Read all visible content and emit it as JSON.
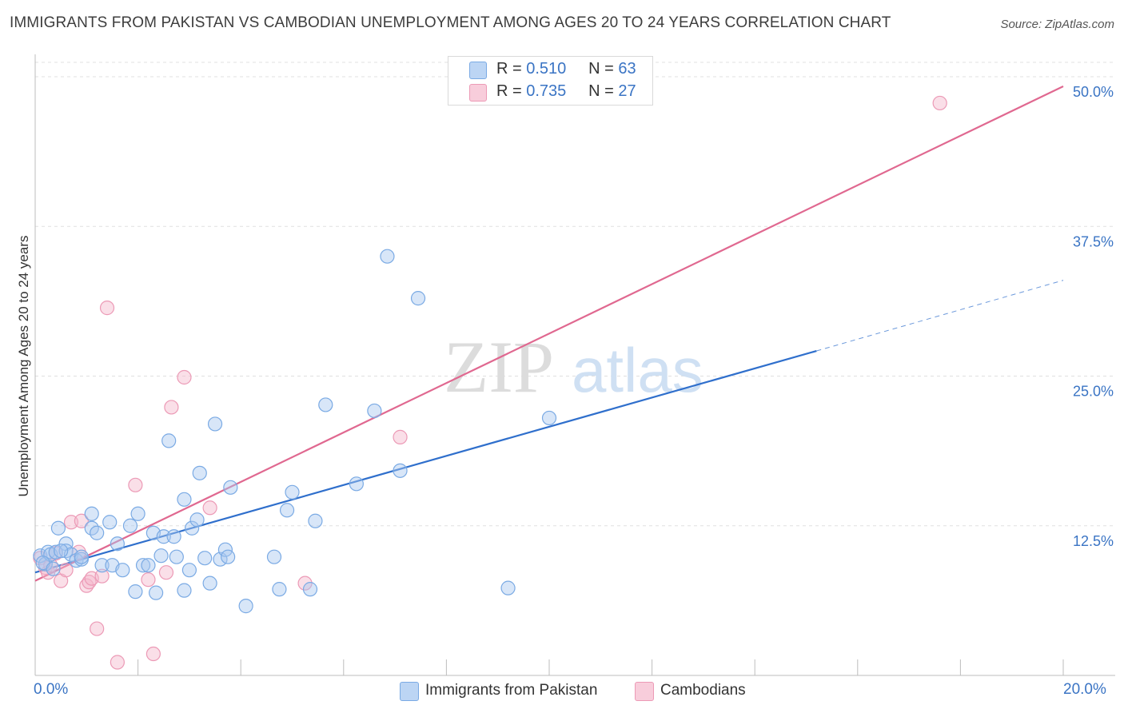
{
  "title": "IMMIGRANTS FROM PAKISTAN VS CAMBODIAN UNEMPLOYMENT AMONG AGES 20 TO 24 YEARS CORRELATION CHART",
  "source": "Source: ZipAtlas.com",
  "watermark": {
    "zip": "ZIP",
    "atlas": "atlas"
  },
  "colors": {
    "blue_fill": "#a9c8f0",
    "blue_stroke": "#7aaae4",
    "blue_line": "#2f6fcc",
    "pink_fill": "#f5b8cb",
    "pink_stroke": "#ec9ab6",
    "pink_line": "#e06890",
    "axis_label": "#3a74c4",
    "grid": "#dddddd"
  },
  "legend_stats": [
    {
      "r_label": "R =",
      "r": "0.510",
      "n_label": "N =",
      "n": "63"
    },
    {
      "r_label": "R =",
      "r": "0.735",
      "n_label": "N =",
      "n": "27"
    }
  ],
  "chart_data": {
    "type": "scatter",
    "title": "IMMIGRANTS FROM PAKISTAN VS CAMBODIAN UNEMPLOYMENT AMONG AGES 20 TO 24 YEARS CORRELATION CHART",
    "xlabel": "",
    "ylabel": "Unemployment Among Ages 20 to 24 years",
    "xlim": [
      0,
      20
    ],
    "ylim": [
      0,
      50
    ],
    "x_tick_labels": [
      "0.0%",
      "20.0%"
    ],
    "y_ticks": [
      12.5,
      25.0,
      37.5,
      50.0
    ],
    "y_tick_labels": [
      "12.5%",
      "25.0%",
      "37.5%",
      "50.0%"
    ],
    "grid": true,
    "legend": "top-center and bottom",
    "series": [
      {
        "name": "Immigrants from Pakistan",
        "color": "#a9c8f0",
        "r": 0.51,
        "n": 63,
        "trend": {
          "x0": 0,
          "y0": 8.6,
          "x1": 15.2,
          "y1": 27.1,
          "dashed_to_x": 20,
          "dashed_to_y": 33.0
        },
        "points": [
          [
            0.1,
            10.0
          ],
          [
            0.2,
            9.3
          ],
          [
            0.25,
            10.3
          ],
          [
            0.3,
            10.1
          ],
          [
            0.4,
            10.3
          ],
          [
            0.45,
            12.3
          ],
          [
            0.6,
            11.0
          ],
          [
            0.6,
            10.4
          ],
          [
            0.7,
            10.1
          ],
          [
            0.8,
            9.6
          ],
          [
            0.9,
            9.7
          ],
          [
            0.9,
            9.9
          ],
          [
            1.1,
            13.5
          ],
          [
            1.1,
            12.3
          ],
          [
            1.2,
            11.9
          ],
          [
            1.3,
            9.2
          ],
          [
            1.45,
            12.8
          ],
          [
            1.5,
            9.2
          ],
          [
            1.6,
            11.0
          ],
          [
            1.7,
            8.8
          ],
          [
            1.85,
            12.5
          ],
          [
            1.95,
            7.0
          ],
          [
            2.0,
            13.5
          ],
          [
            2.1,
            9.2
          ],
          [
            2.2,
            9.2
          ],
          [
            2.3,
            11.9
          ],
          [
            2.35,
            6.9
          ],
          [
            2.45,
            10.0
          ],
          [
            2.5,
            11.6
          ],
          [
            2.6,
            19.6
          ],
          [
            2.7,
            11.6
          ],
          [
            2.75,
            9.9
          ],
          [
            2.9,
            7.1
          ],
          [
            2.9,
            14.7
          ],
          [
            3.0,
            8.8
          ],
          [
            3.05,
            12.3
          ],
          [
            3.15,
            13.0
          ],
          [
            3.2,
            16.9
          ],
          [
            3.3,
            9.8
          ],
          [
            3.4,
            7.7
          ],
          [
            3.5,
            21.0
          ],
          [
            3.6,
            9.7
          ],
          [
            3.7,
            10.5
          ],
          [
            3.75,
            9.9
          ],
          [
            3.8,
            15.7
          ],
          [
            4.1,
            5.8
          ],
          [
            4.65,
            9.9
          ],
          [
            4.75,
            7.2
          ],
          [
            4.9,
            13.8
          ],
          [
            5.0,
            15.3
          ],
          [
            5.35,
            7.2
          ],
          [
            5.45,
            12.9
          ],
          [
            5.65,
            22.6
          ],
          [
            6.25,
            16.0
          ],
          [
            6.6,
            22.1
          ],
          [
            6.85,
            35.0
          ],
          [
            7.1,
            17.1
          ],
          [
            7.45,
            31.5
          ],
          [
            9.2,
            7.3
          ],
          [
            10.0,
            21.5
          ],
          [
            0.15,
            9.4
          ],
          [
            0.35,
            8.9
          ],
          [
            0.5,
            10.4
          ]
        ]
      },
      {
        "name": "Cambodians",
        "color": "#f5b8cb",
        "r": 0.735,
        "n": 27,
        "trend": {
          "x0": 0,
          "y0": 7.9,
          "x1": 20,
          "y1": 49.2
        },
        "points": [
          [
            0.1,
            9.8
          ],
          [
            0.2,
            9.0
          ],
          [
            0.25,
            8.6
          ],
          [
            0.3,
            9.2
          ],
          [
            0.4,
            10.2
          ],
          [
            0.5,
            7.9
          ],
          [
            0.6,
            8.8
          ],
          [
            0.7,
            12.8
          ],
          [
            0.85,
            10.3
          ],
          [
            0.9,
            12.9
          ],
          [
            1.0,
            7.5
          ],
          [
            1.05,
            7.8
          ],
          [
            1.1,
            8.1
          ],
          [
            1.2,
            3.9
          ],
          [
            1.3,
            8.3
          ],
          [
            1.4,
            30.7
          ],
          [
            1.6,
            1.1
          ],
          [
            1.95,
            15.9
          ],
          [
            2.2,
            8.0
          ],
          [
            2.3,
            1.8
          ],
          [
            2.55,
            8.6
          ],
          [
            2.65,
            22.4
          ],
          [
            2.9,
            24.9
          ],
          [
            3.4,
            14.0
          ],
          [
            5.25,
            7.7
          ],
          [
            7.1,
            19.9
          ],
          [
            17.6,
            47.8
          ]
        ]
      }
    ]
  },
  "legend_bottom": [
    {
      "label": "Immigrants from Pakistan"
    },
    {
      "label": "Cambodians"
    }
  ]
}
